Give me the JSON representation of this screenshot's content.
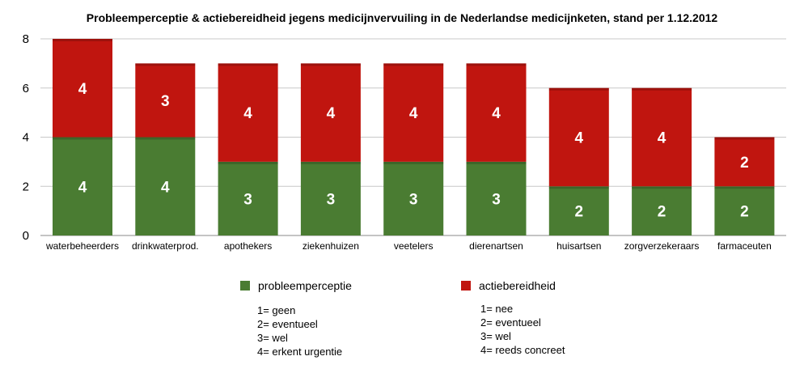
{
  "chart_data": {
    "type": "bar",
    "stacked": true,
    "title": "Probleemperceptie & actiebereidheid jegens medicijnvervuiling in de Nederlandse medicijnketen, stand per 1.12.2012",
    "categories": [
      "waterbeheerders",
      "drinkwaterprod.",
      "apothekers",
      "ziekenhuizen",
      "veetelers",
      "dierenartsen",
      "huisartsen",
      "zorgverzekeraars",
      "farmaceuten"
    ],
    "series": [
      {
        "name": "probleemperceptie",
        "color": "#4a7c32",
        "values": [
          4,
          4,
          3,
          3,
          3,
          3,
          2,
          2,
          2
        ]
      },
      {
        "name": "actiebereidheid",
        "color": "#c0150f",
        "values": [
          4,
          3,
          4,
          4,
          4,
          4,
          4,
          4,
          2
        ]
      }
    ],
    "ylim": [
      0,
      8
    ],
    "yticks": [
      "0",
      "2",
      "4",
      "6",
      "8"
    ],
    "grid": true,
    "legend_position": "bottom"
  },
  "legend_notes": {
    "probleemperceptie": [
      "1= geen",
      "2= eventueel",
      "3= wel",
      "4= erkent urgentie"
    ],
    "actiebereidheid": [
      "1= nee",
      "2= eventueel",
      "3= wel",
      "4= reeds concreet"
    ]
  }
}
